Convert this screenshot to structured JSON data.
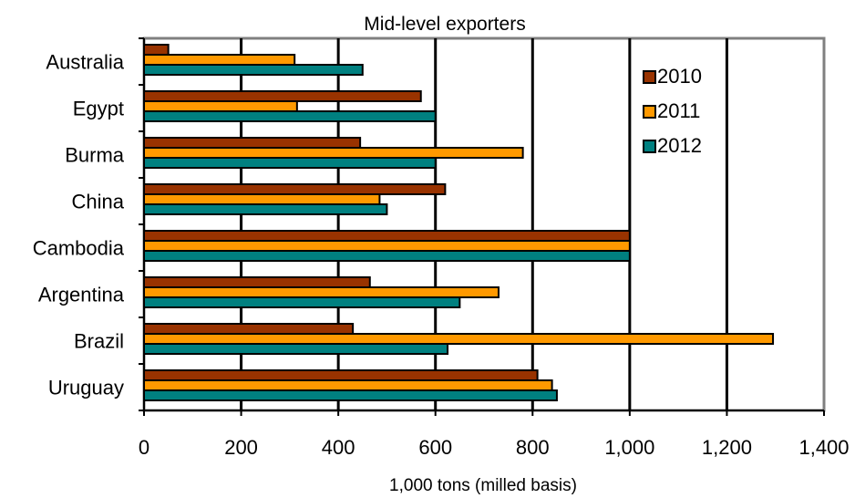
{
  "chart_data": {
    "type": "bar",
    "orientation": "horizontal",
    "title": "Mid-level exporters",
    "xlabel": "1,000 tons (milled basis)",
    "ylabel": "",
    "xlim": [
      0,
      1400
    ],
    "x_ticks": [
      0,
      200,
      400,
      600,
      800,
      1000,
      1200,
      1400
    ],
    "x_tick_labels": [
      "0",
      "200",
      "400",
      "600",
      "800",
      "1,000",
      "1,200",
      "1,400"
    ],
    "categories": [
      "Australia",
      "Egypt",
      "Burma",
      "China",
      "Cambodia",
      "Argentina",
      "Brazil",
      "Uruguay"
    ],
    "series": [
      {
        "name": "2010",
        "color": "#993300",
        "values": [
          50,
          570,
          445,
          620,
          1000,
          465,
          430,
          810
        ]
      },
      {
        "name": "2011",
        "color": "#FF9900",
        "values": [
          310,
          315,
          780,
          485,
          1000,
          730,
          1295,
          840
        ]
      },
      {
        "name": "2012",
        "color": "#008080",
        "values": [
          450,
          600,
          600,
          500,
          1000,
          650,
          625,
          850
        ]
      }
    ],
    "grid": "vertical",
    "legend": "top-right"
  }
}
